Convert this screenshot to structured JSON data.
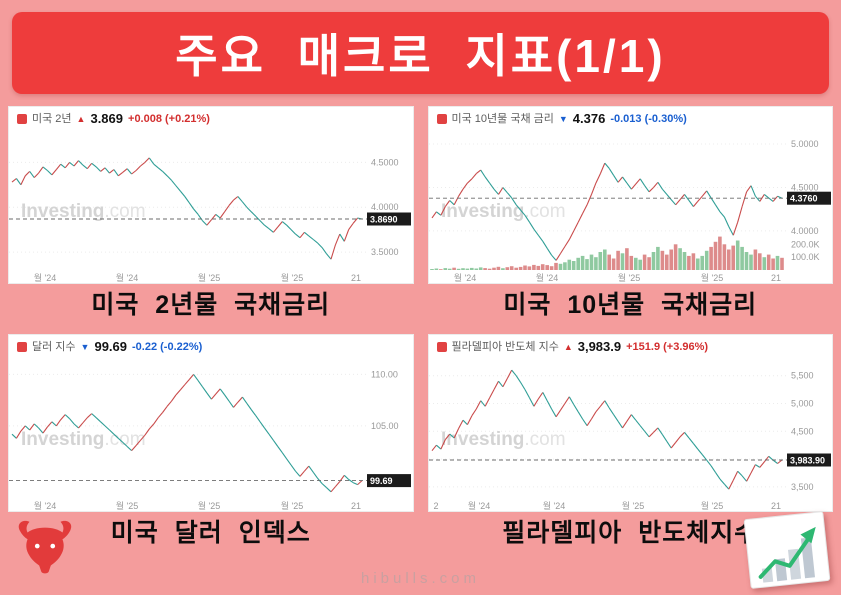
{
  "page": {
    "title": "주요 매크로 지표(1/1)",
    "footer": "hibulls.com",
    "colors": {
      "background": "#f49c9c",
      "banner": "#ee3c3c",
      "up": "#d32f2f",
      "down": "#1a5fd0"
    }
  },
  "watermark": {
    "bold": "Investing",
    "light": ".com"
  },
  "chart_data": [
    {
      "type": "line",
      "header": {
        "icon_color": "#e14242",
        "name": "미국 2년",
        "arrow": "▲",
        "price": "3.869",
        "change": "+0.008 (+0.21%)",
        "change_color": "#d32f2f"
      },
      "caption": "미국 2년물 국채금리",
      "ylim": [
        3.3,
        4.85
      ],
      "yticks": [
        {
          "v": 4.5,
          "label": "4.5000"
        },
        {
          "v": 4.0,
          "label": "4.0000"
        },
        {
          "v": 3.5,
          "label": "3.5000"
        }
      ],
      "xticks": [
        {
          "pos": 0.1,
          "label": "월 '24"
        },
        {
          "pos": 0.33,
          "label": "월 '24"
        },
        {
          "pos": 0.56,
          "label": "월 '25"
        },
        {
          "pos": 0.79,
          "label": "월 '25"
        },
        {
          "pos": 0.97,
          "label": "21"
        }
      ],
      "last": 3.869,
      "last_label": "3.8690",
      "colors": {
        "up": "#c94b4b",
        "down": "#2f9e96",
        "vol_up": "#e4b6b6",
        "vol_down": "#b9dcd7"
      },
      "values": [
        4.28,
        4.32,
        4.25,
        4.35,
        4.4,
        4.33,
        4.38,
        4.45,
        4.41,
        4.36,
        4.42,
        4.48,
        4.44,
        4.5,
        4.46,
        4.52,
        4.47,
        4.43,
        4.49,
        4.45,
        4.4,
        4.44,
        4.38,
        4.42,
        4.35,
        4.39,
        4.43,
        4.37,
        4.41,
        4.46,
        4.5,
        4.55,
        4.48,
        4.44,
        4.4,
        4.35,
        4.3,
        4.24,
        4.18,
        4.12,
        4.05,
        3.98,
        3.92,
        3.85,
        3.8,
        3.86,
        3.92,
        3.88,
        3.95,
        4.02,
        4.08,
        4.12,
        4.06,
        4.0,
        3.95,
        3.9,
        3.85,
        3.8,
        3.76,
        3.72,
        3.78,
        3.84,
        3.8,
        3.75,
        3.7,
        3.66,
        3.72,
        3.68,
        3.64,
        3.6,
        3.55,
        3.48,
        3.42,
        3.58,
        3.7,
        3.62,
        3.75,
        3.82,
        3.88,
        3.869
      ]
    },
    {
      "type": "line",
      "header": {
        "icon_color": "#e14242",
        "name": "미국 10년물 국채 금리",
        "arrow": "▼",
        "price": "4.376",
        "change": "-0.013 (-0.30%)",
        "change_color": "#1a5fd0"
      },
      "caption": "미국 10년물 국채금리",
      "ylim": [
        3.55,
        5.15
      ],
      "yticks": [
        {
          "v": 5.0,
          "label": "5.0000"
        },
        {
          "v": 4.5,
          "label": "4.5000"
        },
        {
          "v": 4.0,
          "label": "4.0000"
        }
      ],
      "xticks": [
        {
          "pos": 0.1,
          "label": "월 '24"
        },
        {
          "pos": 0.33,
          "label": "월 '24"
        },
        {
          "pos": 0.56,
          "label": "월 '25"
        },
        {
          "pos": 0.79,
          "label": "월 '25"
        },
        {
          "pos": 0.97,
          "label": "21"
        }
      ],
      "last": 4.376,
      "last_label": "4.3760",
      "colors": {
        "up": "#c94b4b",
        "down": "#2f9e96",
        "vol_up": "#8fc9a0",
        "vol_down": "#dd8b8b"
      },
      "vol_max": 260,
      "vol_ticks": [
        {
          "v": 200,
          "label": "200.0K"
        },
        {
          "v": 100,
          "label": "100.0K"
        }
      ],
      "volume": [
        8,
        12,
        6,
        15,
        10,
        18,
        9,
        14,
        11,
        16,
        12,
        20,
        15,
        10,
        18,
        25,
        14,
        22,
        30,
        18,
        24,
        35,
        28,
        40,
        32,
        45,
        38,
        30,
        55,
        48,
        60,
        80,
        70,
        95,
        110,
        85,
        120,
        100,
        140,
        160,
        120,
        90,
        150,
        130,
        170,
        110,
        95,
        80,
        120,
        100,
        140,
        180,
        150,
        120,
        160,
        200,
        170,
        140,
        110,
        130,
        90,
        110,
        150,
        180,
        220,
        260,
        200,
        160,
        190,
        230,
        180,
        140,
        120,
        160,
        130,
        100,
        120,
        90,
        110,
        95
      ],
      "values": [
        4.15,
        4.22,
        4.18,
        4.28,
        4.35,
        4.3,
        4.4,
        4.48,
        4.55,
        4.6,
        4.66,
        4.7,
        4.62,
        4.55,
        4.48,
        4.42,
        4.5,
        4.44,
        4.38,
        4.3,
        4.24,
        4.18,
        4.1,
        4.02,
        3.95,
        3.88,
        3.8,
        3.72,
        3.66,
        3.74,
        3.82,
        3.9,
        4.0,
        4.1,
        4.2,
        4.3,
        4.42,
        4.55,
        4.66,
        4.78,
        4.72,
        4.64,
        4.56,
        4.62,
        4.55,
        4.48,
        4.54,
        4.6,
        4.52,
        4.45,
        4.5,
        4.56,
        4.48,
        4.42,
        4.36,
        4.3,
        4.36,
        4.42,
        4.35,
        4.28,
        4.34,
        4.4,
        4.46,
        4.38,
        4.3,
        4.22,
        4.16,
        4.05,
        3.95,
        4.1,
        4.28,
        4.45,
        4.52,
        4.4,
        4.34,
        4.42,
        4.38,
        4.34,
        4.4,
        4.376
      ]
    },
    {
      "type": "line",
      "header": {
        "icon_color": "#e14242",
        "name": "달러 지수",
        "arrow": "▼",
        "price": "99.69",
        "change": "-0.22 (-0.22%)",
        "change_color": "#1a5fd0"
      },
      "caption": "미국 달러 인덱스",
      "ylim": [
        98,
        111.5
      ],
      "yticks": [
        {
          "v": 110,
          "label": "110.00"
        },
        {
          "v": 105,
          "label": "105.00"
        }
      ],
      "xticks": [
        {
          "pos": 0.1,
          "label": "월 '24"
        },
        {
          "pos": 0.33,
          "label": "월 '25"
        },
        {
          "pos": 0.56,
          "label": "월 '25"
        },
        {
          "pos": 0.79,
          "label": "월 '25"
        },
        {
          "pos": 0.97,
          "label": "21"
        }
      ],
      "last": 99.69,
      "last_label": "99.69",
      "colors": {
        "up": "#c94b4b",
        "down": "#2f9e96",
        "vol_up": "#e4b6b6",
        "vol_down": "#b9dcd7"
      },
      "values": [
        104.2,
        103.8,
        104.5,
        105.0,
        104.6,
        105.2,
        104.8,
        104.3,
        104.9,
        105.4,
        105.0,
        105.6,
        106.1,
        105.7,
        105.2,
        104.8,
        105.3,
        105.8,
        106.2,
        105.8,
        105.4,
        105.0,
        104.6,
        104.2,
        103.8,
        103.4,
        103.0,
        102.6,
        103.1,
        103.6,
        104.1,
        104.7,
        105.2,
        105.8,
        106.3,
        106.9,
        107.4,
        108.0,
        108.5,
        109.0,
        109.5,
        110.0,
        109.4,
        108.8,
        108.2,
        107.6,
        108.1,
        108.6,
        108.0,
        107.4,
        106.8,
        107.3,
        107.8,
        107.2,
        106.6,
        106.0,
        105.4,
        104.8,
        104.2,
        103.6,
        103.0,
        102.4,
        101.8,
        101.2,
        100.6,
        100.1,
        100.6,
        101.1,
        100.5,
        99.9,
        99.4,
        99.0,
        98.6,
        99.1,
        99.6,
        100.2,
        99.8,
        99.5,
        99.3,
        99.69
      ]
    },
    {
      "type": "line",
      "header": {
        "icon_color": "#e14242",
        "name": "필라델피아 반도체 지수",
        "arrow": "▲",
        "price": "3,983.9",
        "change": "+151.9 (+3.96%)",
        "change_color": "#d32f2f"
      },
      "caption": "필라델피아 반도체지수",
      "ylim": [
        3300,
        5800
      ],
      "yticks": [
        {
          "v": 5500,
          "label": "5,500"
        },
        {
          "v": 5000,
          "label": "5,000"
        },
        {
          "v": 4500,
          "label": "4,500"
        },
        {
          "v": 4000,
          "label": "4,000"
        },
        {
          "v": 3500,
          "label": "3,500"
        }
      ],
      "xticks": [
        {
          "pos": 0.02,
          "label": "2"
        },
        {
          "pos": 0.14,
          "label": "월 '24"
        },
        {
          "pos": 0.35,
          "label": "월 '24"
        },
        {
          "pos": 0.57,
          "label": "월 '25"
        },
        {
          "pos": 0.79,
          "label": "월 '25"
        },
        {
          "pos": 0.97,
          "label": "21"
        }
      ],
      "last": 3983.9,
      "last_label": "3,983.90",
      "colors": {
        "up": "#c94b4b",
        "down": "#2f9e96",
        "vol_up": "#e4b6b6",
        "vol_down": "#b9dcd7"
      },
      "values": [
        4150,
        4250,
        4180,
        4350,
        4450,
        4380,
        4550,
        4700,
        4620,
        4780,
        4900,
        5050,
        4950,
        5100,
        5250,
        5400,
        5300,
        5450,
        5600,
        5500,
        5380,
        5250,
        5100,
        4950,
        5080,
        5200,
        5050,
        4900,
        4760,
        4880,
        5000,
        5120,
        4980,
        4850,
        4720,
        4600,
        4720,
        4850,
        4950,
        5050,
        4920,
        4800,
        4680,
        4560,
        4680,
        4800,
        4700,
        4600,
        4500,
        4400,
        4480,
        4560,
        4440,
        4320,
        4200,
        4300,
        4400,
        4480,
        4380,
        4280,
        4180,
        4080,
        3980,
        3880,
        3760,
        3640,
        3550,
        3460,
        3620,
        3780,
        3700,
        3600,
        3750,
        3900,
        3850,
        3950,
        4050,
        3980,
        3920,
        3983.9
      ]
    }
  ]
}
